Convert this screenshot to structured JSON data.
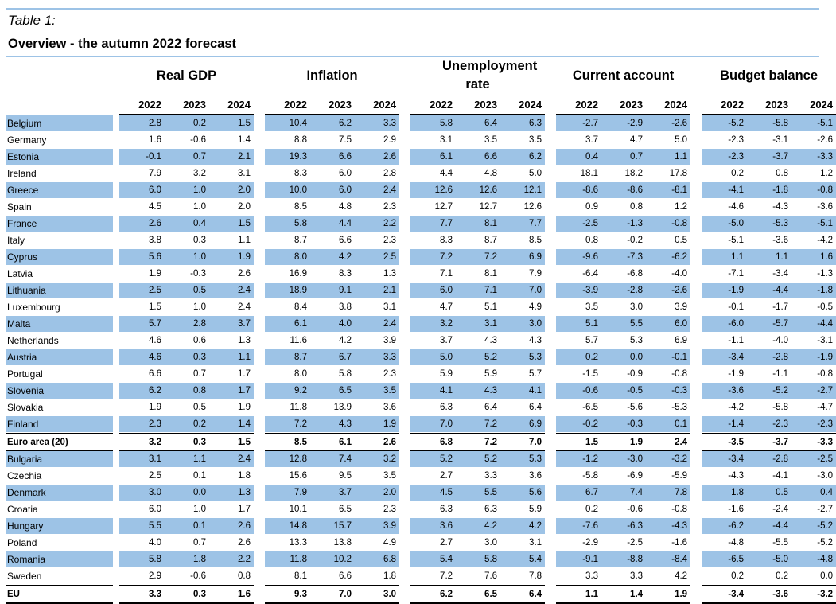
{
  "caption": "Table 1:",
  "title": "Overview - the autumn 2022 forecast",
  "groups": [
    "Real GDP",
    "Inflation",
    "Unemployment rate",
    "Current account",
    "Budget balance"
  ],
  "years": [
    "2022",
    "2023",
    "2024"
  ],
  "rows": [
    {
      "country": "Belgium",
      "values": [
        "2.8",
        "0.2",
        "1.5",
        "10.4",
        "6.2",
        "3.3",
        "5.8",
        "6.4",
        "6.3",
        "-2.7",
        "-2.9",
        "-2.6",
        "-5.2",
        "-5.8",
        "-5.1"
      ]
    },
    {
      "country": "Germany",
      "values": [
        "1.6",
        "-0.6",
        "1.4",
        "8.8",
        "7.5",
        "2.9",
        "3.1",
        "3.5",
        "3.5",
        "3.7",
        "4.7",
        "5.0",
        "-2.3",
        "-3.1",
        "-2.6"
      ]
    },
    {
      "country": "Estonia",
      "values": [
        "-0.1",
        "0.7",
        "2.1",
        "19.3",
        "6.6",
        "2.6",
        "6.1",
        "6.6",
        "6.2",
        "0.4",
        "0.7",
        "1.1",
        "-2.3",
        "-3.7",
        "-3.3"
      ]
    },
    {
      "country": "Ireland",
      "values": [
        "7.9",
        "3.2",
        "3.1",
        "8.3",
        "6.0",
        "2.8",
        "4.4",
        "4.8",
        "5.0",
        "18.1",
        "18.2",
        "17.8",
        "0.2",
        "0.8",
        "1.2"
      ]
    },
    {
      "country": "Greece",
      "values": [
        "6.0",
        "1.0",
        "2.0",
        "10.0",
        "6.0",
        "2.4",
        "12.6",
        "12.6",
        "12.1",
        "-8.6",
        "-8.6",
        "-8.1",
        "-4.1",
        "-1.8",
        "-0.8"
      ]
    },
    {
      "country": "Spain",
      "values": [
        "4.5",
        "1.0",
        "2.0",
        "8.5",
        "4.8",
        "2.3",
        "12.7",
        "12.7",
        "12.6",
        "0.9",
        "0.8",
        "1.2",
        "-4.6",
        "-4.3",
        "-3.6"
      ]
    },
    {
      "country": "France",
      "values": [
        "2.6",
        "0.4",
        "1.5",
        "5.8",
        "4.4",
        "2.2",
        "7.7",
        "8.1",
        "7.7",
        "-2.5",
        "-1.3",
        "-0.8",
        "-5.0",
        "-5.3",
        "-5.1"
      ]
    },
    {
      "country": "Italy",
      "values": [
        "3.8",
        "0.3",
        "1.1",
        "8.7",
        "6.6",
        "2.3",
        "8.3",
        "8.7",
        "8.5",
        "0.8",
        "-0.2",
        "0.5",
        "-5.1",
        "-3.6",
        "-4.2"
      ]
    },
    {
      "country": "Cyprus",
      "values": [
        "5.6",
        "1.0",
        "1.9",
        "8.0",
        "4.2",
        "2.5",
        "7.2",
        "7.2",
        "6.9",
        "-9.6",
        "-7.3",
        "-6.2",
        "1.1",
        "1.1",
        "1.6"
      ]
    },
    {
      "country": "Latvia",
      "values": [
        "1.9",
        "-0.3",
        "2.6",
        "16.9",
        "8.3",
        "1.3",
        "7.1",
        "8.1",
        "7.9",
        "-6.4",
        "-6.8",
        "-4.0",
        "-7.1",
        "-3.4",
        "-1.3"
      ]
    },
    {
      "country": "Lithuania",
      "values": [
        "2.5",
        "0.5",
        "2.4",
        "18.9",
        "9.1",
        "2.1",
        "6.0",
        "7.1",
        "7.0",
        "-3.9",
        "-2.8",
        "-2.6",
        "-1.9",
        "-4.4",
        "-1.8"
      ]
    },
    {
      "country": "Luxembourg",
      "values": [
        "1.5",
        "1.0",
        "2.4",
        "8.4",
        "3.8",
        "3.1",
        "4.7",
        "5.1",
        "4.9",
        "3.5",
        "3.0",
        "3.9",
        "-0.1",
        "-1.7",
        "-0.5"
      ]
    },
    {
      "country": "Malta",
      "values": [
        "5.7",
        "2.8",
        "3.7",
        "6.1",
        "4.0",
        "2.4",
        "3.2",
        "3.1",
        "3.0",
        "5.1",
        "5.5",
        "6.0",
        "-6.0",
        "-5.7",
        "-4.4"
      ]
    },
    {
      "country": "Netherlands",
      "values": [
        "4.6",
        "0.6",
        "1.3",
        "11.6",
        "4.2",
        "3.9",
        "3.7",
        "4.3",
        "4.3",
        "5.7",
        "5.3",
        "6.9",
        "-1.1",
        "-4.0",
        "-3.1"
      ]
    },
    {
      "country": "Austria",
      "values": [
        "4.6",
        "0.3",
        "1.1",
        "8.7",
        "6.7",
        "3.3",
        "5.0",
        "5.2",
        "5.3",
        "0.2",
        "0.0",
        "-0.1",
        "-3.4",
        "-2.8",
        "-1.9"
      ]
    },
    {
      "country": "Portugal",
      "values": [
        "6.6",
        "0.7",
        "1.7",
        "8.0",
        "5.8",
        "2.3",
        "5.9",
        "5.9",
        "5.7",
        "-1.5",
        "-0.9",
        "-0.8",
        "-1.9",
        "-1.1",
        "-0.8"
      ]
    },
    {
      "country": "Slovenia",
      "values": [
        "6.2",
        "0.8",
        "1.7",
        "9.2",
        "6.5",
        "3.5",
        "4.1",
        "4.3",
        "4.1",
        "-0.6",
        "-0.5",
        "-0.3",
        "-3.6",
        "-5.2",
        "-2.7"
      ]
    },
    {
      "country": "Slovakia",
      "values": [
        "1.9",
        "0.5",
        "1.9",
        "11.8",
        "13.9",
        "3.6",
        "6.3",
        "6.4",
        "6.4",
        "-6.5",
        "-5.6",
        "-5.3",
        "-4.2",
        "-5.8",
        "-4.7"
      ]
    },
    {
      "country": "Finland",
      "values": [
        "2.3",
        "0.2",
        "1.4",
        "7.2",
        "4.3",
        "1.9",
        "7.0",
        "7.2",
        "6.9",
        "-0.2",
        "-0.3",
        "0.1",
        "-1.4",
        "-2.3",
        "-2.3"
      ]
    },
    {
      "country": "Euro area (20)",
      "agg": true,
      "values": [
        "3.2",
        "0.3",
        "1.5",
        "8.5",
        "6.1",
        "2.6",
        "6.8",
        "7.2",
        "7.0",
        "1.5",
        "1.9",
        "2.4",
        "-3.5",
        "-3.7",
        "-3.3"
      ]
    },
    {
      "country": "Bulgaria",
      "values": [
        "3.1",
        "1.1",
        "2.4",
        "12.8",
        "7.4",
        "3.2",
        "5.2",
        "5.2",
        "5.3",
        "-1.2",
        "-3.0",
        "-3.2",
        "-3.4",
        "-2.8",
        "-2.5"
      ]
    },
    {
      "country": "Czechia",
      "values": [
        "2.5",
        "0.1",
        "1.8",
        "15.6",
        "9.5",
        "3.5",
        "2.7",
        "3.3",
        "3.6",
        "-5.8",
        "-6.9",
        "-5.9",
        "-4.3",
        "-4.1",
        "-3.0"
      ]
    },
    {
      "country": "Denmark",
      "values": [
        "3.0",
        "0.0",
        "1.3",
        "7.9",
        "3.7",
        "2.0",
        "4.5",
        "5.5",
        "5.6",
        "6.7",
        "7.4",
        "7.8",
        "1.8",
        "0.5",
        "0.4"
      ]
    },
    {
      "country": "Croatia",
      "values": [
        "6.0",
        "1.0",
        "1.7",
        "10.1",
        "6.5",
        "2.3",
        "6.3",
        "6.3",
        "5.9",
        "0.2",
        "-0.6",
        "-0.8",
        "-1.6",
        "-2.4",
        "-2.7"
      ]
    },
    {
      "country": "Hungary",
      "values": [
        "5.5",
        "0.1",
        "2.6",
        "14.8",
        "15.7",
        "3.9",
        "3.6",
        "4.2",
        "4.2",
        "-7.6",
        "-6.3",
        "-4.3",
        "-6.2",
        "-4.4",
        "-5.2"
      ]
    },
    {
      "country": "Poland",
      "values": [
        "4.0",
        "0.7",
        "2.6",
        "13.3",
        "13.8",
        "4.9",
        "2.7",
        "3.0",
        "3.1",
        "-2.9",
        "-2.5",
        "-1.6",
        "-4.8",
        "-5.5",
        "-5.2"
      ]
    },
    {
      "country": "Romania",
      "values": [
        "5.8",
        "1.8",
        "2.2",
        "11.8",
        "10.2",
        "6.8",
        "5.4",
        "5.8",
        "5.4",
        "-9.1",
        "-8.8",
        "-8.4",
        "-6.5",
        "-5.0",
        "-4.8"
      ]
    },
    {
      "country": "Sweden",
      "values": [
        "2.9",
        "-0.6",
        "0.8",
        "8.1",
        "6.6",
        "1.8",
        "7.2",
        "7.6",
        "7.8",
        "3.3",
        "3.3",
        "4.2",
        "0.2",
        "0.2",
        "0.0"
      ]
    },
    {
      "country": "EU",
      "agg": true,
      "eu": true,
      "values": [
        "3.3",
        "0.3",
        "1.6",
        "9.3",
        "7.0",
        "3.0",
        "6.2",
        "6.5",
        "6.4",
        "1.1",
        "1.4",
        "1.9",
        "-3.4",
        "-3.6",
        "-3.2"
      ]
    }
  ],
  "colors": {
    "shade": "#9dc3e6",
    "rule": "#000000"
  }
}
